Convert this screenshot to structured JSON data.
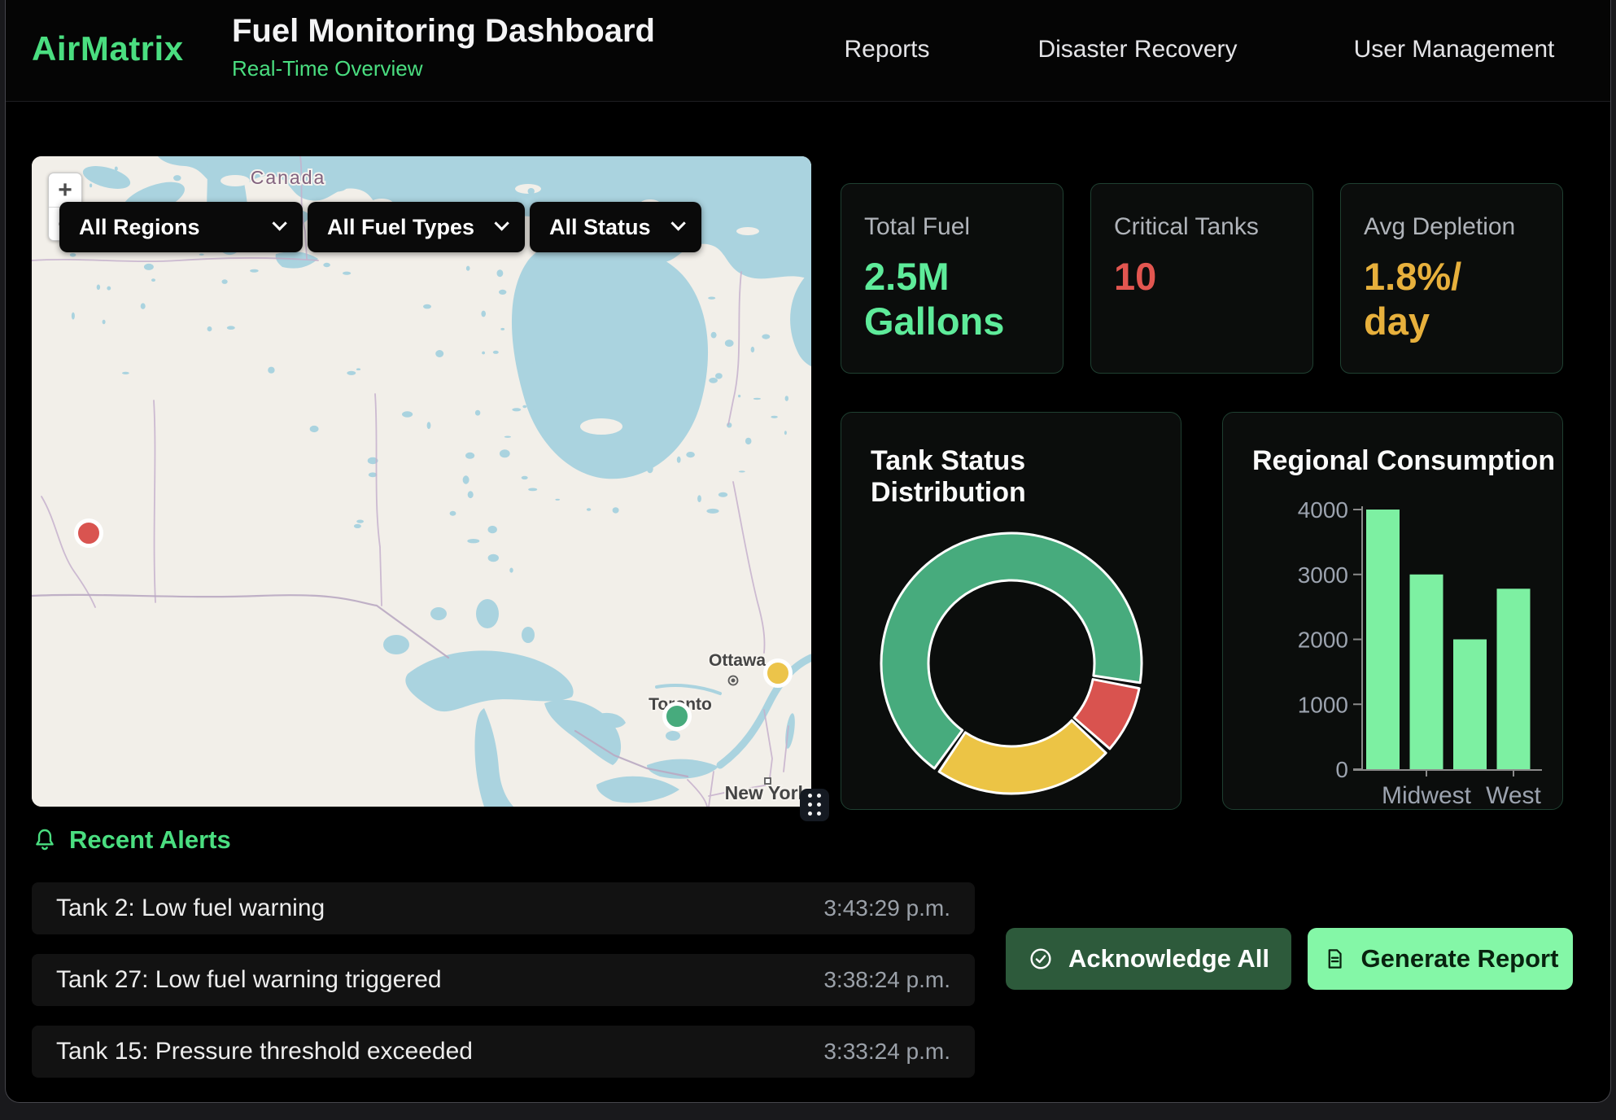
{
  "header": {
    "logo": "AirMatrix",
    "title": "Fuel Monitoring Dashboard",
    "subtitle": "Real-Time Overview",
    "nav": [
      {
        "label": "Reports"
      },
      {
        "label": "Disaster Recovery"
      },
      {
        "label": "User Management"
      }
    ]
  },
  "map": {
    "filters": [
      {
        "value": "All Regions"
      },
      {
        "value": "All Fuel Types"
      },
      {
        "value": "All Status"
      }
    ],
    "zoom_in": "+",
    "zoom_out": "−",
    "labels": {
      "country": "Canada",
      "city_ottawa": "Ottawa",
      "city_toronto": "Toronto",
      "city_newyork": "New York"
    },
    "markers": [
      {
        "status": "critical",
        "color": "#d95450"
      },
      {
        "status": "warning",
        "color": "#ecc44a"
      },
      {
        "status": "operational",
        "color": "#47ab7d"
      }
    ],
    "colors": {
      "land": "#f2efe9",
      "water": "#aad3df"
    }
  },
  "stats": [
    {
      "label": "Total Fuel",
      "value": "2.5M\nGallons",
      "color": "#5eeb9a"
    },
    {
      "label": "Critical Tanks",
      "value": "10",
      "color": "#e25650"
    },
    {
      "label": "Avg Depletion",
      "value": "1.8%/\nday",
      "color": "#e7b03c"
    }
  ],
  "chart_data": [
    {
      "type": "donut",
      "title": "Tank Status Distribution",
      "segments": [
        {
          "name": "operational",
          "value": 68,
          "color": "#47ab7d"
        },
        {
          "name": "critical",
          "value": 9,
          "color": "#d9534f"
        },
        {
          "name": "warning",
          "value": 23,
          "color": "#ecc445"
        }
      ],
      "start_angle": 215,
      "pad_angle": 2.5,
      "outer_radius": 160,
      "inner_radius": 102,
      "legend": false
    },
    {
      "type": "bar",
      "title": "Regional Consumption",
      "categories": [
        "",
        "Midwest",
        "",
        "West"
      ],
      "values": [
        4000,
        3000,
        2000,
        2780
      ],
      "yticks": [
        0,
        1000,
        2000,
        3000,
        4000
      ],
      "ylim": [
        0,
        4000
      ],
      "bar_color": "#7df0a2",
      "axis_color": "#8a8a8a",
      "tick_label_color": "#9ca3af"
    }
  ],
  "alerts": {
    "heading": "Recent Alerts",
    "items": [
      {
        "text": "Tank 2: Low fuel warning",
        "time": "3:43:29 p.m."
      },
      {
        "text": "Tank 27: Low fuel warning triggered",
        "time": "3:38:24 p.m."
      },
      {
        "text": "Tank 15: Pressure threshold exceeded",
        "time": "3:33:24 p.m."
      }
    ]
  },
  "actions": {
    "acknowledge": "Acknowledge All",
    "generate": "Generate Report"
  }
}
